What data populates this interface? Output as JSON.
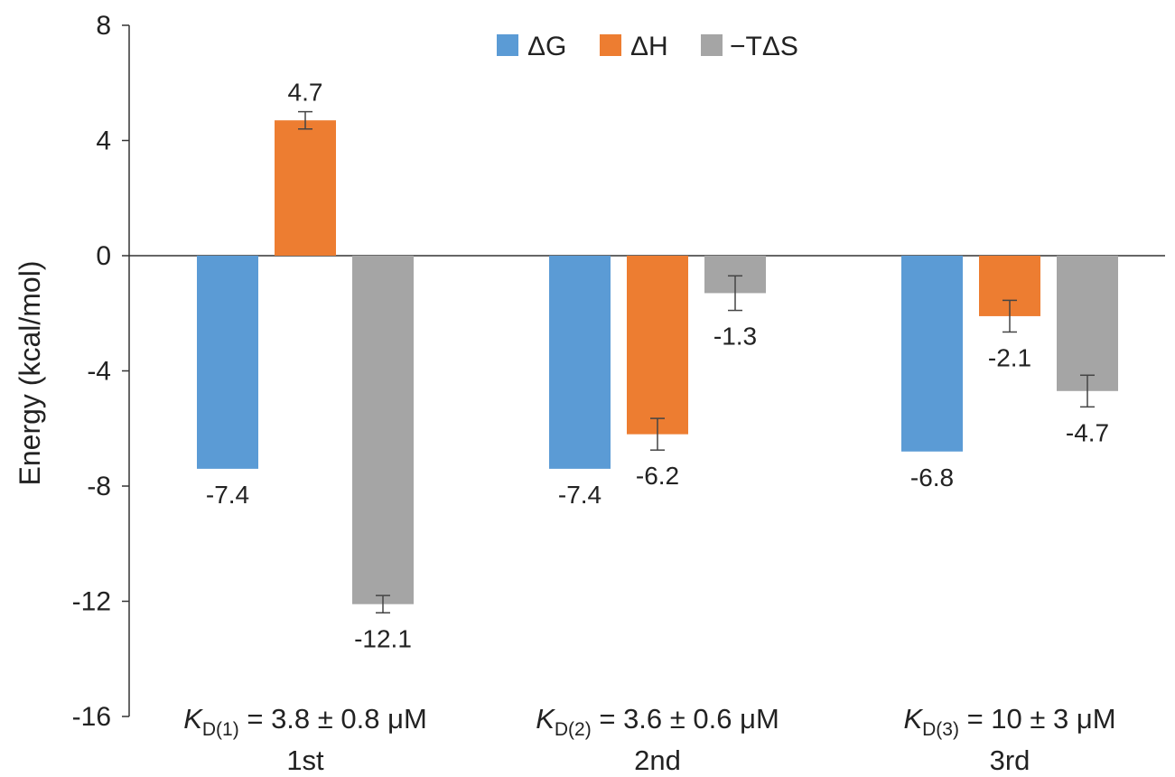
{
  "chart_data": {
    "type": "bar",
    "categories": [
      "1st",
      "2nd",
      "3rd"
    ],
    "category_sublabels": [
      {
        "k": "K",
        "sub": "D(1)",
        "rest": " = 3.8 ± 0.8 μM"
      },
      {
        "k": "K",
        "sub": "D(2)",
        "rest": " = 3.6 ± 0.6 μM"
      },
      {
        "k": "K",
        "sub": "D(3)",
        "rest": " = 10 ± 3 μM"
      }
    ],
    "series": [
      {
        "name": "ΔG",
        "color": "#5b9bd5",
        "values": [
          -7.4,
          -7.4,
          -6.8
        ],
        "errors": [
          null,
          null,
          null
        ],
        "labels": [
          "-7.4",
          "-7.4",
          "-6.8"
        ]
      },
      {
        "name": "ΔH",
        "color": "#ed7d31",
        "values": [
          4.7,
          -6.2,
          -2.1
        ],
        "errors": [
          0.3,
          0.55,
          0.55
        ],
        "labels": [
          "4.7",
          "-6.2",
          "-2.1"
        ]
      },
      {
        "name": "−TΔS",
        "color": "#a5a5a5",
        "values": [
          -12.1,
          -1.3,
          -4.7
        ],
        "errors": [
          0.3,
          0.6,
          0.55
        ],
        "labels": [
          "-12.1",
          "-1.3",
          "-4.7"
        ]
      }
    ],
    "xlabel": "",
    "ylabel": "Energy (kcal/mol)",
    "ylim": [
      -16,
      8
    ],
    "yticks": [
      8,
      4,
      0,
      -4,
      -8,
      -12,
      -16
    ],
    "grid": false,
    "legend_position": "top-center"
  }
}
